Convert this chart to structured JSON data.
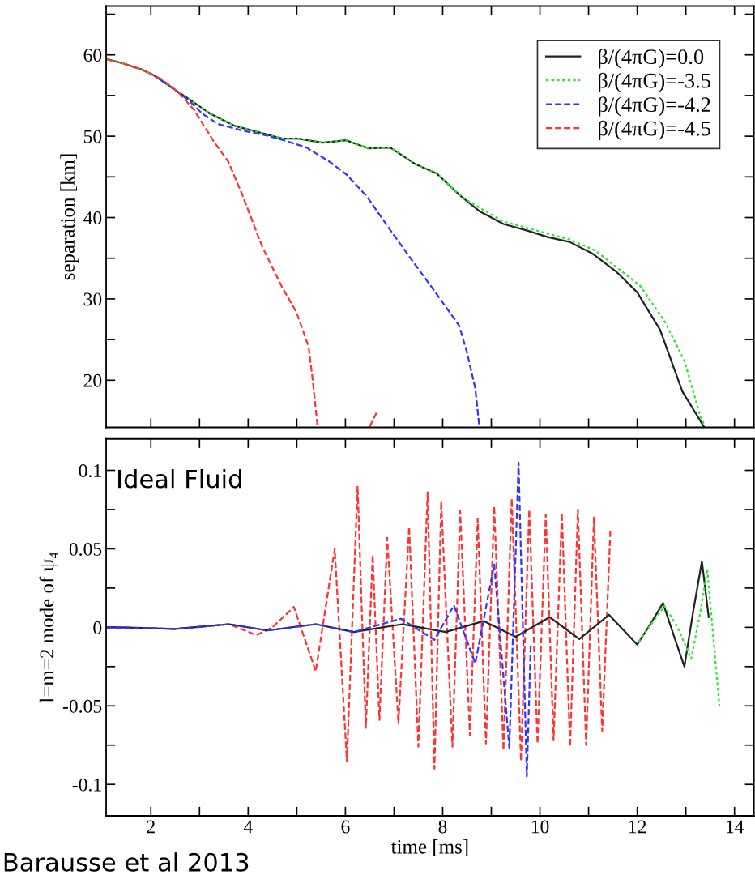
{
  "chart_data": [
    {
      "type": "line",
      "ylabel": "separation [km]",
      "xlim": [
        1.08,
        14.4
      ],
      "ylim": [
        14.2,
        66
      ],
      "xticks": [
        {
          "value": 2,
          "label": null
        },
        {
          "value": 3,
          "label": null
        },
        {
          "value": 4,
          "label": null
        },
        {
          "value": 5,
          "label": null
        },
        {
          "value": 6,
          "label": null
        },
        {
          "value": 7,
          "label": null
        },
        {
          "value": 8,
          "label": null
        },
        {
          "value": 9,
          "label": null
        },
        {
          "value": 10,
          "label": null
        },
        {
          "value": 11,
          "label": null
        },
        {
          "value": 12,
          "label": null
        },
        {
          "value": 13,
          "label": null
        },
        {
          "value": 14,
          "label": null
        }
      ],
      "yticks": [
        20,
        {
          "value": 25,
          "label": null
        },
        30,
        {
          "value": 35,
          "label": null
        },
        40,
        {
          "value": 45,
          "label": null
        },
        50,
        {
          "value": 55,
          "label": null
        },
        60,
        {
          "value": 65,
          "label": null
        }
      ],
      "tick_labels": "y",
      "legend": "top right",
      "grid": false,
      "series": [
        {
          "name": "β/(4πG)=0.0",
          "color": "#222222",
          "line_style": "solid",
          "x": [
            1.08,
            1.4,
            1.81,
            2.06,
            2.47,
            2.8,
            3.21,
            3.71,
            4.21,
            4.7,
            5.03,
            5.53,
            6.01,
            6.48,
            6.92,
            7.43,
            7.88,
            8.34,
            8.75,
            9.25,
            9.74,
            10.16,
            10.61,
            11.07,
            11.56,
            12.0,
            12.47,
            12.93,
            13.38
          ],
          "values": [
            59.5,
            59.0,
            58.2,
            57.5,
            55.8,
            54.5,
            52.8,
            51.3,
            50.5,
            49.7,
            49.7,
            49.2,
            49.5,
            48.5,
            48.6,
            46.6,
            45.4,
            42.8,
            40.8,
            39.2,
            38.4,
            37.6,
            37.0,
            35.6,
            33.4,
            30.8,
            26.2,
            18.6,
            14.2
          ]
        },
        {
          "name": "β/(4πG)=-3.5",
          "color": "#22ee22",
          "line_style": "dotted",
          "x": [
            1.08,
            1.4,
            1.81,
            2.06,
            2.47,
            2.8,
            3.21,
            3.71,
            4.21,
            4.7,
            5.03,
            5.53,
            6.01,
            6.48,
            6.92,
            7.43,
            7.88,
            8.34,
            8.59,
            9.25,
            10.61,
            11.15,
            12.06,
            12.55,
            12.97,
            13.3,
            13.38
          ],
          "values": [
            59.5,
            59.0,
            58.2,
            57.5,
            55.8,
            54.5,
            52.8,
            51.3,
            50.5,
            49.7,
            49.7,
            49.2,
            49.5,
            48.5,
            48.6,
            46.6,
            45.4,
            42.8,
            41.8,
            39.5,
            37.3,
            35.9,
            31.6,
            27.4,
            22.4,
            15.5,
            14.5
          ]
        },
        {
          "name": "β/(4πG)=-4.2",
          "color": "#3333ff",
          "line_style": "dashed",
          "x": [
            2.06,
            2.47,
            2.8,
            3.05,
            3.38,
            3.88,
            4.37,
            4.79,
            5.2,
            5.69,
            6.02,
            6.44,
            6.93,
            7.35,
            7.84,
            8.34,
            8.5,
            8.67,
            8.75
          ],
          "values": [
            57.5,
            55.8,
            54.3,
            52.8,
            51.5,
            50.7,
            50.1,
            49.4,
            48.6,
            46.8,
            45.3,
            42.6,
            38.4,
            34.9,
            30.9,
            26.7,
            23.4,
            19.0,
            14.5
          ]
        },
        {
          "name": "β/(4πG)=-4.5",
          "color": "#ff3333",
          "line_style": "dashed",
          "x": [
            1.08,
            1.4,
            1.81,
            2.22,
            2.55,
            2.88,
            3.3,
            3.59,
            3.88,
            4.29,
            4.7,
            4.99,
            5.24,
            5.32,
            5.43,
            6.0,
            6.5,
            6.64
          ],
          "values": [
            59.5,
            59.0,
            58.2,
            57.0,
            55.5,
            53.3,
            49.3,
            46.9,
            42.8,
            36.4,
            31.4,
            28.4,
            24.2,
            20.4,
            14.2,
            null,
            14.3,
            16.0
          ]
        }
      ]
    },
    {
      "type": "line",
      "xlabel": "time [ms]",
      "ylabel": "l=m=2 mode of ψ₄",
      "xlim": [
        1.08,
        14.4
      ],
      "ylim": [
        -0.12,
        0.12
      ],
      "xticks": [
        2,
        {
          "value": 3,
          "label": null
        },
        4,
        {
          "value": 5,
          "label": null
        },
        6,
        {
          "value": 7,
          "label": null
        },
        8,
        {
          "value": 9,
          "label": null
        },
        10,
        {
          "value": 11,
          "label": null
        },
        12,
        {
          "value": 13,
          "label": null
        },
        14
      ],
      "yticks": [
        -0.1,
        {
          "value": -0.075,
          "label": null
        },
        -0.05,
        {
          "value": -0.025,
          "label": null
        },
        0,
        {
          "value": 0.025,
          "label": null
        },
        0.05,
        {
          "value": 0.075,
          "label": null
        },
        0.1
      ],
      "grid": false,
      "annotations": [
        "Ideal Fluid",
        "Barausse et al 2013"
      ],
      "series": [
        {
          "color": "#ff3333",
          "line_style": "dashed",
          "x": [
            1.08,
            2.5,
            3.61,
            4.17,
            4.5,
            4.94,
            5.39,
            5.78,
            6.03,
            6.25,
            6.42,
            6.56,
            6.7,
            6.86,
            7.09,
            7.31,
            7.5,
            7.69,
            7.83,
            7.97,
            8.2,
            8.36,
            8.56,
            8.72,
            8.89,
            9.06,
            9.25,
            9.42,
            9.61,
            9.78,
            9.95,
            10.12,
            10.28,
            10.45,
            10.62,
            10.78,
            10.95,
            11.11,
            11.28,
            11.45
          ],
          "values": [
            0,
            -0.001,
            0.002,
            -0.005,
            0,
            0.013,
            -0.028,
            0.05,
            -0.085,
            0.09,
            -0.064,
            0.046,
            -0.059,
            0.057,
            -0.061,
            0.064,
            -0.076,
            0.086,
            -0.09,
            0.08,
            -0.076,
            0.074,
            -0.069,
            0.069,
            -0.074,
            0.077,
            -0.078,
            0.082,
            -0.085,
            0.075,
            -0.074,
            0.072,
            -0.072,
            0.073,
            -0.076,
            0.075,
            -0.075,
            0.07,
            -0.066,
            0.063
          ]
        },
        {
          "color": "#222222",
          "line_style": "solid",
          "x": [
            1.08,
            1.39,
            2.5,
            3.61,
            4.39,
            5.39,
            6.17,
            7.17,
            8.06,
            8.84,
            9.5,
            10.2,
            10.81,
            11.42,
            12.0,
            12.27,
            12.53,
            12.75,
            12.97,
            13.15,
            13.33,
            13.47
          ],
          "values": [
            0,
            0,
            -0.001,
            0.002,
            -0.002,
            0.002,
            -0.003,
            0.002,
            -0.003,
            0.004,
            -0.006,
            0.0065,
            -0.0075,
            0.008,
            -0.011,
            0.002,
            0.0155,
            -0.005,
            -0.025,
            0.01,
            0.042,
            0.0065
          ]
        },
        {
          "color": "#22ee22",
          "line_style": "dotted",
          "x": [
            12.03,
            12.56,
            12.83,
            13.11,
            13.3,
            13.44,
            13.69
          ],
          "values": [
            -0.009,
            0.0136,
            0.0,
            -0.02,
            0.01,
            0.037,
            -0.05
          ]
        },
        {
          "color": "#3333ff",
          "line_style": "dashed",
          "x": [
            1.08,
            1.39,
            2.5,
            3.61,
            4.39,
            5.39,
            6.17,
            7.14,
            7.83,
            8.23,
            8.67,
            9.06,
            9.37,
            9.56,
            9.73,
            9.81
          ],
          "values": [
            0,
            0,
            -0.001,
            0.002,
            -0.002,
            0.002,
            -0.003,
            0.0055,
            -0.008,
            0.014,
            -0.023,
            0.04,
            -0.077,
            0.105,
            -0.095,
            -0.012
          ]
        }
      ]
    }
  ]
}
